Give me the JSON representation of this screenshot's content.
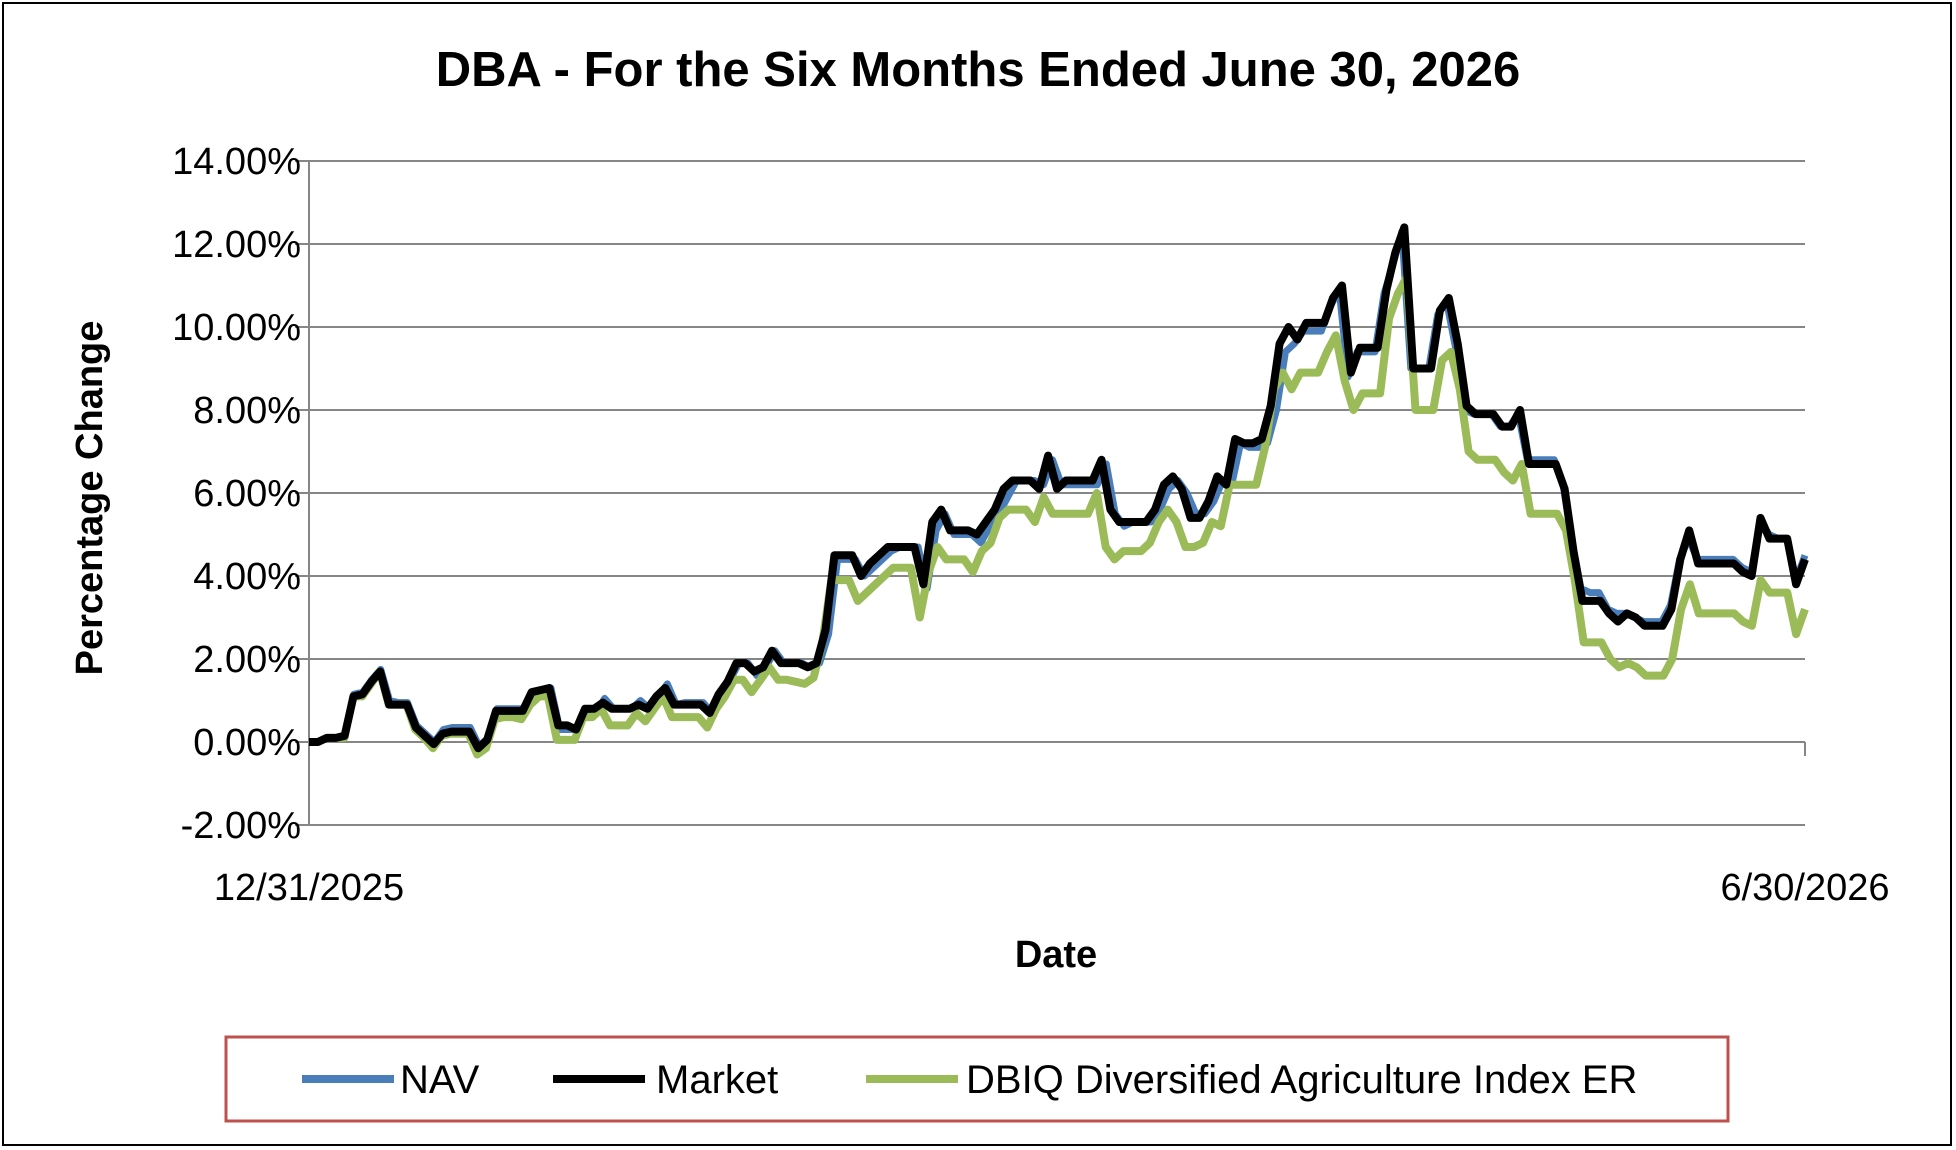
{
  "chart_data": {
    "type": "line",
    "title": "DBA - For the Six Months Ended June 30, 2026",
    "xlabel": "Date",
    "ylabel": "Percentage Change",
    "x_tick_labels": [
      "12/31/2025",
      "6/30/2026"
    ],
    "y_tick_labels": [
      "14.00%",
      "12.00%",
      "10.00%",
      "8.00%",
      "6.00%",
      "4.00%",
      "2.00%",
      "0.00%",
      "-2.00%"
    ],
    "ylim": [
      -2,
      14
    ],
    "y_unit": "%",
    "grid": true,
    "legend_position": "bottom",
    "series": [
      {
        "name": "NAV",
        "color": "#4a7ebb",
        "values": [
          0,
          0,
          0.1,
          0.1,
          0.15,
          1.15,
          1.2,
          1.5,
          1.75,
          1,
          0.95,
          0.95,
          0.4,
          0.2,
          0,
          0.3,
          0.35,
          0.35,
          0.35,
          -0.1,
          0.1,
          0.8,
          0.8,
          0.8,
          0.8,
          1.2,
          1.25,
          1.3,
          0.3,
          0.3,
          0.3,
          0.8,
          0.7,
          1.05,
          0.8,
          0.8,
          0.8,
          1.0,
          0.8,
          1.1,
          1.4,
          0.9,
          0.95,
          0.95,
          0.95,
          0.7,
          1.2,
          1.5,
          1.9,
          1.9,
          1.6,
          1.8,
          2.2,
          1.9,
          1.9,
          1.9,
          1.8,
          1.9,
          2.6,
          4.4,
          4.4,
          4.4,
          4.0,
          4.2,
          4.4,
          4.6,
          4.7,
          4.7,
          4.7,
          3.7,
          5.1,
          5.5,
          5.0,
          5.0,
          5.0,
          4.8,
          5.2,
          5.5,
          5.9,
          6.3,
          6.3,
          6.3,
          6.2,
          6.8,
          6.2,
          6.2,
          6.2,
          6.2,
          6.2,
          6.7,
          5.5,
          5.2,
          5.3,
          5.3,
          5.3,
          5.6,
          6.1,
          6.3,
          6.0,
          5.5,
          5.5,
          5.8,
          6.3,
          6.2,
          7.2,
          7.1,
          7.1,
          7.2,
          8.0,
          9.4,
          9.6,
          9.9,
          9.9,
          9.9,
          10.5,
          10.9,
          8.8,
          9.4,
          9.4,
          9.4,
          10.8,
          11.5,
          12.3,
          9.0,
          9.0,
          9.0,
          10.3,
          10.6,
          9.5,
          8.0,
          7.9,
          7.9,
          7.9,
          7.6,
          7.6,
          7.9,
          6.8,
          6.8,
          6.8,
          6.8,
          6.2,
          4.8,
          3.7,
          3.6,
          3.6,
          3.2,
          3.1,
          3.1,
          3.0,
          2.9,
          2.9,
          2.9,
          3.3,
          4.4,
          4.9,
          4.4,
          4.4,
          4.4,
          4.4,
          4.4,
          4.2,
          4.1,
          5.3,
          5.0,
          4.9,
          4.9,
          3.9,
          4.5
        ]
      },
      {
        "name": "Market",
        "color": "#000000",
        "values": [
          0,
          0,
          0.1,
          0.1,
          0.15,
          1.1,
          1.15,
          1.45,
          1.7,
          0.9,
          0.9,
          0.9,
          0.35,
          0.15,
          -0.05,
          0.2,
          0.25,
          0.25,
          0.25,
          -0.15,
          0.05,
          0.75,
          0.75,
          0.75,
          0.75,
          1.2,
          1.25,
          1.3,
          0.4,
          0.4,
          0.3,
          0.8,
          0.8,
          0.95,
          0.8,
          0.8,
          0.8,
          0.9,
          0.8,
          1.1,
          1.3,
          0.9,
          0.9,
          0.9,
          0.9,
          0.7,
          1.15,
          1.45,
          1.9,
          1.9,
          1.7,
          1.8,
          2.2,
          1.9,
          1.9,
          1.9,
          1.8,
          1.9,
          2.7,
          4.5,
          4.5,
          4.5,
          4.0,
          4.3,
          4.5,
          4.7,
          4.7,
          4.7,
          4.7,
          3.8,
          5.3,
          5.6,
          5.1,
          5.1,
          5.1,
          5.0,
          5.3,
          5.6,
          6.1,
          6.3,
          6.3,
          6.3,
          6.1,
          6.9,
          6.1,
          6.3,
          6.3,
          6.3,
          6.3,
          6.8,
          5.6,
          5.3,
          5.3,
          5.3,
          5.3,
          5.6,
          6.2,
          6.4,
          6.1,
          5.4,
          5.4,
          5.8,
          6.4,
          6.2,
          7.3,
          7.2,
          7.2,
          7.3,
          8.1,
          9.6,
          10.0,
          9.7,
          10.1,
          10.1,
          10.1,
          10.7,
          11.0,
          8.9,
          9.5,
          9.5,
          9.5,
          10.9,
          11.8,
          12.4,
          9.0,
          9.0,
          9.0,
          10.4,
          10.7,
          9.6,
          8.1,
          7.9,
          7.9,
          7.9,
          7.6,
          7.6,
          8.0,
          6.7,
          6.7,
          6.7,
          6.7,
          6.1,
          4.6,
          3.4,
          3.4,
          3.4,
          3.1,
          2.9,
          3.1,
          3.0,
          2.8,
          2.8,
          2.8,
          3.2,
          4.4,
          5.1,
          4.3,
          4.3,
          4.3,
          4.3,
          4.3,
          4.1,
          4.0,
          5.4,
          4.9,
          4.9,
          4.9,
          3.8,
          4.4
        ]
      },
      {
        "name": "DBIQ Diversified Agriculture Index ER",
        "color": "#9bbb59",
        "values": [
          0,
          0,
          0.1,
          0.1,
          0.1,
          1.1,
          1.1,
          1.4,
          1.7,
          0.9,
          0.9,
          0.9,
          0.3,
          0.1,
          -0.15,
          0.15,
          0.2,
          0.2,
          0.2,
          -0.3,
          -0.15,
          0.55,
          0.6,
          0.6,
          0.55,
          0.9,
          1.1,
          1.1,
          0.05,
          0.05,
          0.05,
          0.6,
          0.6,
          0.8,
          0.4,
          0.4,
          0.4,
          0.7,
          0.5,
          0.8,
          1.1,
          0.6,
          0.6,
          0.6,
          0.6,
          0.35,
          0.8,
          1.1,
          1.5,
          1.5,
          1.2,
          1.5,
          1.8,
          1.5,
          1.5,
          1.45,
          1.4,
          1.55,
          2.4,
          3.9,
          3.9,
          3.9,
          3.4,
          3.6,
          3.8,
          4.0,
          4.2,
          4.2,
          4.2,
          3.0,
          4.1,
          4.7,
          4.4,
          4.4,
          4.4,
          4.1,
          4.6,
          4.8,
          5.4,
          5.6,
          5.6,
          5.6,
          5.3,
          5.9,
          5.5,
          5.5,
          5.5,
          5.5,
          5.5,
          6.0,
          4.7,
          4.4,
          4.6,
          4.6,
          4.6,
          4.8,
          5.3,
          5.6,
          5.3,
          4.7,
          4.7,
          4.8,
          5.3,
          5.2,
          6.2,
          6.2,
          6.2,
          6.2,
          7.1,
          8.5,
          8.9,
          8.5,
          8.9,
          8.9,
          8.9,
          9.4,
          9.8,
          8.7,
          8.0,
          8.4,
          8.4,
          8.4,
          10.2,
          10.8,
          11.2,
          8.0,
          8.0,
          8.0,
          9.2,
          9.4,
          8.5,
          7.0,
          6.8,
          6.8,
          6.8,
          6.5,
          6.3,
          6.7,
          5.5,
          5.5,
          5.5,
          5.5,
          5.1,
          3.9,
          2.4,
          2.4,
          2.4,
          2.0,
          1.8,
          1.9,
          1.8,
          1.6,
          1.6,
          1.6,
          2.0,
          3.2,
          3.8,
          3.1,
          3.1,
          3.1,
          3.1,
          3.1,
          2.9,
          2.8,
          3.9,
          3.6,
          3.6,
          3.6,
          2.6,
          3.2
        ]
      }
    ]
  }
}
